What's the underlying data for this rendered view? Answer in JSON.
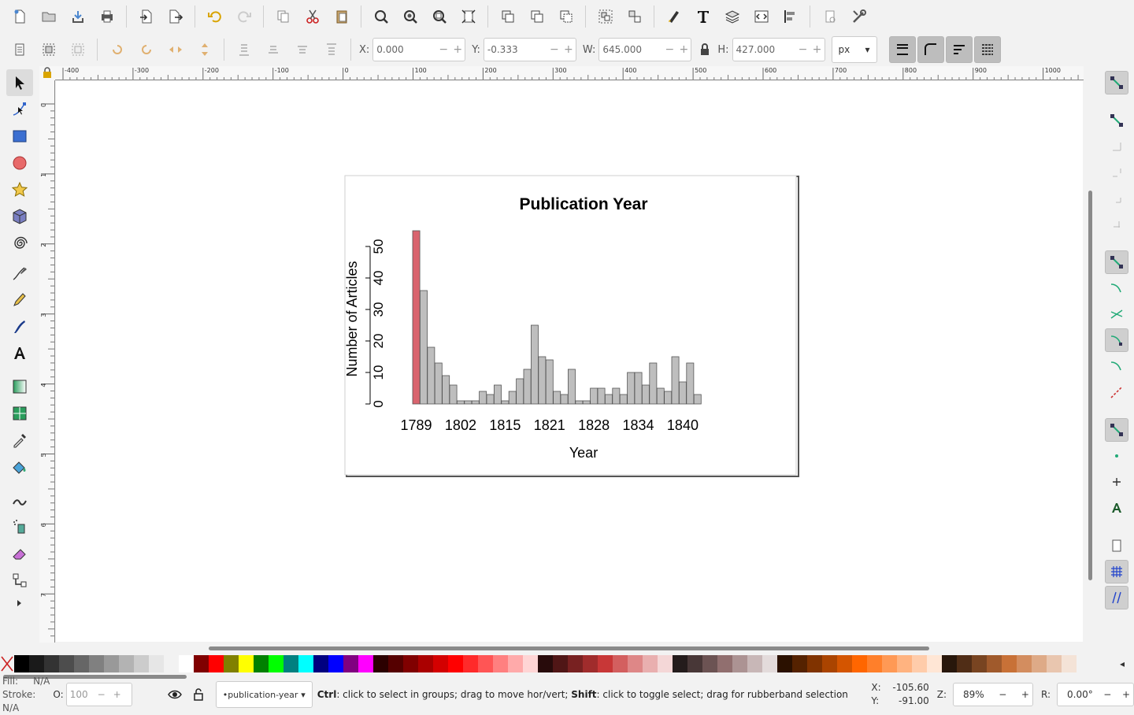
{
  "toolbar": {
    "x_label": "X:",
    "x_value": "0.000",
    "y_label": "Y:",
    "y_value": "-0.333",
    "w_label": "W:",
    "w_value": "645.000",
    "h_label": "H:",
    "h_value": "427.000",
    "unit": "px"
  },
  "ruler": {
    "top_labels": [
      "-400",
      "-300",
      "-200",
      "-100",
      "0",
      "100",
      "200",
      "300",
      "400",
      "500",
      "600",
      "700",
      "800",
      "900",
      "1000"
    ],
    "left_labels": [
      "0",
      "1",
      "2",
      "3",
      "4",
      "5",
      "6",
      "7",
      "8"
    ]
  },
  "chart_data": {
    "type": "bar",
    "title": "Publication Year",
    "xlabel": "Year",
    "ylabel": "Number of Articles",
    "ylim": [
      0,
      55
    ],
    "yticks": [
      0,
      10,
      20,
      30,
      40,
      50
    ],
    "xtick_labels": [
      "1789",
      "1802",
      "1815",
      "1821",
      "1828",
      "1834",
      "1840"
    ],
    "values": [
      55,
      36,
      18,
      13,
      9,
      6,
      1,
      1,
      1,
      4,
      3,
      6,
      1,
      4,
      8,
      11,
      25,
      15,
      14,
      4,
      3,
      11,
      1,
      1,
      5,
      5,
      3,
      5,
      3,
      10,
      10,
      6,
      13,
      5,
      4,
      15,
      7,
      13,
      3
    ],
    "highlight_index": 0,
    "bar_color": "#bebebe",
    "highlight_color": "#d9646e",
    "grid": false,
    "legend": "none"
  },
  "palette": [
    "#000000",
    "#1a1a1a",
    "#333333",
    "#4d4d4d",
    "#666666",
    "#808080",
    "#999999",
    "#b3b3b3",
    "#cccccc",
    "#e6e6e6",
    "#f2f2f2",
    "#ffffff",
    "#800000",
    "#ff0000",
    "#808000",
    "#ffff00",
    "#008000",
    "#00ff00",
    "#008080",
    "#00ffff",
    "#000080",
    "#0000ff",
    "#800080",
    "#ff00ff",
    "#2b0000",
    "#550000",
    "#800000",
    "#aa0000",
    "#d40000",
    "#ff0000",
    "#ff2a2a",
    "#ff5555",
    "#ff8080",
    "#ffaaaa",
    "#ffd5d5",
    "#280b0b",
    "#501616",
    "#782121",
    "#a02c2c",
    "#c83737",
    "#d35f5f",
    "#de8787",
    "#e9afaf",
    "#f4d7d7",
    "#241c1c",
    "#483737",
    "#6c5353",
    "#916f6f",
    "#ac9393",
    "#c8b7b7",
    "#e3dbdb",
    "#2b1100",
    "#552200",
    "#803300",
    "#aa4400",
    "#d45500",
    "#ff6600",
    "#ff7f2a",
    "#ff9955",
    "#ffb380",
    "#ffccaa",
    "#ffe6d5",
    "#28170b",
    "#502d16",
    "#784421",
    "#a05a2c",
    "#c87137",
    "#d38d5f",
    "#deaa87",
    "#e9c6af",
    "#f4e3d7"
  ],
  "status": {
    "fill_label": "Fill:",
    "fill_value": "N/A",
    "stroke_label": "Stroke:",
    "stroke_value": "N/A",
    "opacity_label": "O:",
    "opacity_value": "100",
    "layer": "•publication-year",
    "message_ctrl": "Ctrl",
    "message_part1": ": click to select in groups; drag to move hor/vert; ",
    "message_shift": "Shift",
    "message_part2": ": click to toggle select; drag for rubberband selection",
    "cursor_x_label": "X:",
    "cursor_x": "-105.60",
    "cursor_y_label": "Y:",
    "cursor_y": "-91.00",
    "zoom_label": "Z:",
    "zoom": "89%",
    "rotate_label": "R:",
    "rotate": "0.00°"
  }
}
